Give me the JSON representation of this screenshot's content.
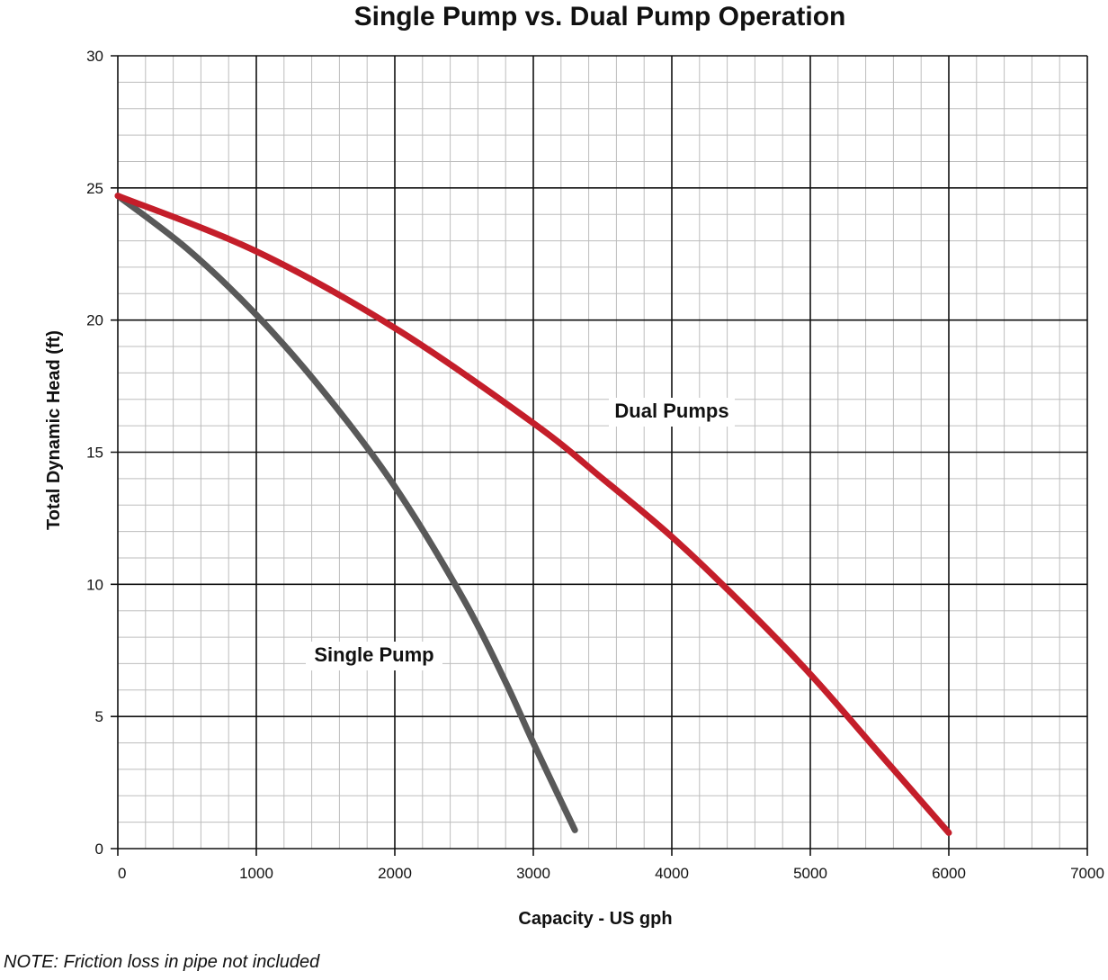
{
  "chart_data": {
    "type": "line",
    "title": "Single Pump vs. Dual Pump Operation",
    "xlabel": "Capacity - US gph",
    "ylabel": "Total Dynamic Head (ft)",
    "xlim": [
      0,
      7000
    ],
    "ylim": [
      0,
      30
    ],
    "xticks": [
      "0",
      "1000",
      "2000",
      "3000",
      "4000",
      "5000",
      "6000",
      "7000"
    ],
    "yticks": [
      "0",
      "5",
      "10",
      "15",
      "20",
      "25",
      "30"
    ],
    "grid": true,
    "colors": {
      "single": "#595959",
      "dual": "#c41e2a"
    },
    "series": [
      {
        "name": "Single Pump",
        "color": "#595959",
        "points": [
          [
            0,
            24.7
          ],
          [
            500,
            22.7
          ],
          [
            1000,
            20.2
          ],
          [
            1500,
            17.2
          ],
          [
            2000,
            13.7
          ],
          [
            2500,
            9.4
          ],
          [
            2800,
            6.3
          ],
          [
            3000,
            4.0
          ],
          [
            3300,
            0.7
          ]
        ]
      },
      {
        "name": "Dual Pumps",
        "color": "#c41e2a",
        "points": [
          [
            0,
            24.7
          ],
          [
            1000,
            22.6
          ],
          [
            2000,
            19.7
          ],
          [
            3000,
            16.1
          ],
          [
            3500,
            14.0
          ],
          [
            4000,
            11.8
          ],
          [
            4500,
            9.3
          ],
          [
            5000,
            6.6
          ],
          [
            5500,
            3.6
          ],
          [
            6000,
            0.6
          ]
        ]
      }
    ]
  },
  "note": "NOTE: Friction loss in pipe not included"
}
